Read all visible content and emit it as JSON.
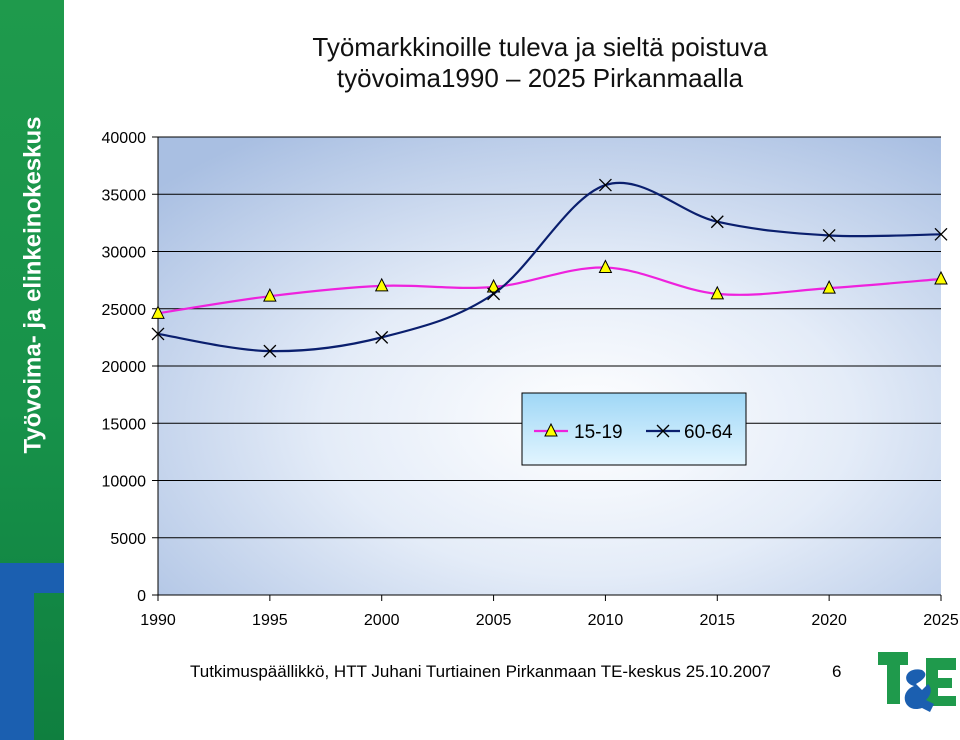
{
  "sidebar": {
    "text": "Työvoima- ja elinkeinokeskus",
    "colors": {
      "green": "#1f9a4c",
      "blue": "#1b5fb0"
    }
  },
  "title_lines": [
    "Työmarkkinoille tuleva ja sieltä poistuva",
    "työvoima1990 – 2025 Pirkanmaalla"
  ],
  "footer": {
    "text": "Tutkimuspäällikkö, HTT Juhani Turtiainen Pirkanmaan TE-keskus 25.10.2007",
    "page_number": "6"
  },
  "logo": {
    "text": "T&E",
    "icon": "te-keskus-logo-icon"
  },
  "chart_data": {
    "type": "line",
    "x": [
      1990,
      1995,
      2000,
      2005,
      2010,
      2015,
      2020,
      2025
    ],
    "x_tick_labels": [
      "1990",
      "1995",
      "2000",
      "2005",
      "2010",
      "2015",
      "2020",
      "2025"
    ],
    "y_tick_labels": [
      "0",
      "5000",
      "10000",
      "15000",
      "20000",
      "25000",
      "30000",
      "35000",
      "40000"
    ],
    "ylim": [
      0,
      40000
    ],
    "y_ticks": [
      0,
      5000,
      10000,
      15000,
      20000,
      25000,
      30000,
      35000,
      40000
    ],
    "grid": "horizontal",
    "legend_position": "lower-right-inside",
    "plot_background": "blue-white radial gradient",
    "series": [
      {
        "name": "15-19",
        "values": [
          24600,
          26100,
          27000,
          26900,
          28600,
          26300,
          26800,
          27600
        ],
        "color": "#ee22dd",
        "marker": "triangle",
        "marker_color": "#ffff00"
      },
      {
        "name": "60-64",
        "values": [
          22800,
          21300,
          22500,
          26300,
          35800,
          32600,
          31400,
          31500
        ],
        "color": "#0a1f6e",
        "marker": "x",
        "marker_color": "#000000"
      }
    ]
  }
}
